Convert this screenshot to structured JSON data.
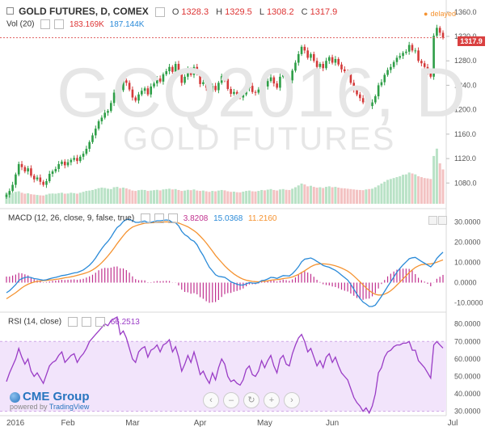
{
  "header": {
    "symbol": "GOLD FUTURES, D, COMEX",
    "o_label": "O",
    "o": "1328.3",
    "h_label": "H",
    "h": "1329.5",
    "l_label": "L",
    "l": "1308.2",
    "c_label": "C",
    "c": "1317.9",
    "vol_label": "Vol (20)",
    "vol1": "183.169K",
    "vol2": "187.144K",
    "delayed": "delayed",
    "last_price": "1317.9"
  },
  "watermark": {
    "line1": "GCQ2016, D",
    "line2": "GOLD FUTURES"
  },
  "macd_header": {
    "label": "MACD (12, 26, close, 9, false, true)",
    "v1": "3.8208",
    "v2": "15.0368",
    "v3": "11.2160"
  },
  "rsi_header": {
    "label": "RSI (14, close)",
    "v1": "66.2513"
  },
  "branding": {
    "brand": "CME Group",
    "powered": "powered by",
    "tv": "TradingView"
  },
  "nav_buttons": [
    "‹",
    "–",
    "↻",
    "+",
    "›"
  ],
  "colors": {
    "up": "#2e9e47",
    "down": "#d33a3a",
    "macd": "#2a8ad8",
    "signal": "#f59331",
    "hist": "#c0308e",
    "rsi": "#9a3cc6",
    "rsi_band": "#f2e4fb",
    "vol_up": "#b9e2c6",
    "vol_down": "#f3c2c2",
    "price_line": "#e06060"
  },
  "chart_data": [
    {
      "type": "candlestick",
      "title": "GOLD FUTURES, D, COMEX",
      "x_ticks": [
        "2016",
        "Feb",
        "Mar",
        "Apr",
        "May",
        "Jun",
        "Jul"
      ],
      "y_ticks": [
        1080,
        1120,
        1160,
        1200,
        1240,
        1280,
        1320,
        1360
      ],
      "ylim": [
        1046,
        1369
      ],
      "last_price": 1317.9,
      "closes": [
        1061,
        1067,
        1077,
        1094,
        1111,
        1106,
        1099,
        1104,
        1092,
        1086,
        1089,
        1082,
        1077,
        1083,
        1095,
        1099,
        1103,
        1111,
        1115,
        1109,
        1114,
        1118,
        1121,
        1116,
        1123,
        1128,
        1136,
        1147,
        1158,
        1169,
        1181,
        1187,
        1195,
        1198,
        1211,
        1228,
        1241,
        1232,
        1248,
        1244,
        1233,
        1220,
        1215,
        1225,
        1231,
        1235,
        1225,
        1238,
        1243,
        1251,
        1246,
        1258,
        1263,
        1270,
        1262,
        1275,
        1263,
        1244,
        1254,
        1266,
        1257,
        1270,
        1259,
        1242,
        1245,
        1236,
        1229,
        1239,
        1232,
        1244,
        1255,
        1250,
        1234,
        1226,
        1229,
        1223,
        1220,
        1225,
        1235,
        1239,
        1229,
        1228,
        1233,
        1245,
        1238,
        1247,
        1253,
        1243,
        1236,
        1254,
        1258,
        1250,
        1248,
        1264,
        1277,
        1291,
        1303,
        1297,
        1285,
        1291,
        1280,
        1270,
        1275,
        1268,
        1280,
        1286,
        1277,
        1283,
        1274,
        1266,
        1263,
        1258,
        1244,
        1233,
        1225,
        1219,
        1212,
        1214,
        1206,
        1212,
        1222,
        1240,
        1245,
        1257,
        1265,
        1270,
        1278,
        1285,
        1288,
        1293,
        1295,
        1306,
        1297,
        1297,
        1280,
        1276,
        1270,
        1262,
        1254,
        1321,
        1334,
        1326,
        1317.9
      ],
      "volume": {
        "label": "Vol (20)",
        "values": [
          60,
          62,
          58,
          65,
          68,
          60,
          55,
          57,
          52,
          50,
          48,
          46,
          45,
          50,
          55,
          56,
          55,
          58,
          60,
          55,
          56,
          60,
          58,
          55,
          60,
          65,
          70,
          72,
          75,
          80,
          85,
          88,
          86,
          82,
          80,
          90,
          92,
          85,
          88,
          84,
          78,
          72,
          70,
          74,
          76,
          75,
          70,
          72,
          74,
          76,
          73,
          78,
          80,
          82,
          78,
          80,
          75,
          70,
          72,
          76,
          74,
          78,
          72,
          70,
          72,
          68,
          65,
          70,
          68,
          72,
          75,
          73,
          68,
          65,
          66,
          63,
          62,
          66,
          70,
          72,
          68,
          67,
          70,
          75,
          73,
          77,
          80,
          75,
          72,
          78,
          80,
          76,
          75,
          82,
          90,
          100,
          110,
          105,
          95,
          98,
          92,
          88,
          90,
          86,
          92,
          95,
          90,
          92,
          88,
          85,
          84,
          82,
          80,
          78,
          76,
          75,
          74,
          78,
          80,
          82,
          90,
          100,
          110,
          120,
          130,
          135,
          140,
          145,
          150,
          158,
          160,
          170,
          165,
          160,
          150,
          145,
          140,
          138,
          135,
          260,
          300,
          220,
          187
        ]
      }
    },
    {
      "type": "line",
      "title": "MACD (12, 26, close, 9, false, true)",
      "y_ticks": [
        -10,
        0,
        10,
        20,
        30
      ],
      "ylim": [
        -13,
        35
      ],
      "series": [
        {
          "name": "MACD",
          "values": [
            -5,
            -4,
            -2.5,
            -1,
            1,
            2,
            2.5,
            2.8,
            2.5,
            2,
            1.8,
            1.5,
            1.2,
            1.4,
            1.9,
            2.3,
            2.6,
            3,
            3.5,
            3.7,
            4,
            4.4,
            4.8,
            5,
            5.6,
            6.3,
            7.4,
            8.6,
            10.2,
            12.2,
            14.6,
            16.8,
            18.8,
            20.4,
            22.5,
            25,
            27.3,
            28.4,
            30.2,
            31.2,
            31.3,
            30.6,
            29.8,
            29.8,
            30.2,
            30.5,
            29.7,
            29.8,
            30.2,
            30.6,
            30.6,
            30.8,
            31,
            30.8,
            29.7,
            29.6,
            28.1,
            25.4,
            23.7,
            22.8,
            21.2,
            20.5,
            18.7,
            15.8,
            13.4,
            10.4,
            7.6,
            5.8,
            3.9,
            3.1,
            2.9,
            2.6,
            1.6,
            0.4,
            -0.2,
            -0.8,
            -1.2,
            -1.2,
            -0.6,
            0,
            -0.2,
            -0.3,
            0,
            1,
            1.2,
            1.8,
            2.6,
            2.5,
            2.1,
            2.8,
            3.5,
            3.4,
            3.3,
            4.4,
            6,
            7.9,
            10.3,
            11.6,
            11.9,
            12.2,
            11.5,
            10.5,
            9.6,
            8.5,
            8,
            7.6,
            6.8,
            6.1,
            5,
            3.7,
            2.5,
            1.3,
            -0.8,
            -3.2,
            -5.7,
            -7.8,
            -9.6,
            -10.6,
            -11.8,
            -11.8,
            -11.1,
            -9,
            -6.8,
            -4.4,
            -1.9,
            0.4,
            2.8,
            5.2,
            7.1,
            8.8,
            10.3,
            11.8,
            12.3,
            12.5,
            11.5,
            10.5,
            9.6,
            8.7,
            7.8,
            9.5,
            12,
            13.6,
            15.04
          ]
        },
        {
          "name": "Signal",
          "values": [
            -8,
            -7,
            -6,
            -5,
            -3.8,
            -2.6,
            -1.6,
            -0.8,
            -0.2,
            0.3,
            0.6,
            0.8,
            1,
            1.1,
            1.3,
            1.4,
            1.6,
            1.8,
            2.1,
            2.4,
            2.6,
            2.9,
            3.2,
            3.6,
            4,
            4.4,
            4.9,
            5.5,
            6.3,
            7.3,
            8.5,
            9.9,
            11.5,
            13.2,
            15.1,
            17.1,
            19.3,
            21.3,
            23.2,
            25,
            26.4,
            27.5,
            28.1,
            28.6,
            29,
            29.4,
            29.5,
            29.6,
            29.7,
            29.8,
            29.9,
            30,
            30.1,
            30,
            29.8,
            29.7,
            29.5,
            28.9,
            28.3,
            27.6,
            26.7,
            25.7,
            24.5,
            23,
            21.4,
            19.6,
            17.6,
            15.6,
            13.5,
            11.7,
            10,
            8.3,
            6.8,
            5.5,
            4.3,
            3.3,
            2.4,
            1.7,
            1.2,
            0.9,
            0.6,
            0.5,
            0.4,
            0.6,
            0.7,
            0.9,
            1.2,
            1.4,
            1.5,
            1.7,
            2,
            2.2,
            2.4,
            2.8,
            3.4,
            4.1,
            5,
            5.9,
            6.9,
            7.9,
            8.6,
            9.1,
            9.3,
            9.3,
            9.2,
            9,
            8.7,
            8.3,
            7.8,
            7.2,
            6.5,
            5.7,
            4.6,
            3.3,
            1.9,
            0.4,
            -1.1,
            -2.6,
            -3.9,
            -5,
            -5.8,
            -6.1,
            -6.1,
            -5.7,
            -5,
            -4,
            -2.7,
            -1.2,
            0.3,
            1.9,
            3.4,
            5,
            6.3,
            7.5,
            8.3,
            8.9,
            9.1,
            9.2,
            9.3,
            9.6,
            10.1,
            10.7,
            11.22
          ]
        }
      ],
      "histogram": {
        "name": "Histogram",
        "values": [
          3,
          3,
          3.5,
          4,
          4.8,
          4.6,
          4.1,
          3.6,
          2.7,
          1.7,
          1.2,
          0.7,
          0.2,
          0.3,
          0.6,
          0.9,
          1,
          1.2,
          1.4,
          1.3,
          1.4,
          1.5,
          1.6,
          1.4,
          1.6,
          1.9,
          2.5,
          3.1,
          3.9,
          4.9,
          6.1,
          6.9,
          7.3,
          7.2,
          7.4,
          7.9,
          8,
          7.1,
          7,
          6.2,
          4.9,
          3.1,
          1.7,
          1.2,
          1.2,
          1.1,
          0.2,
          0.2,
          0.5,
          0.8,
          0.7,
          0.8,
          0.9,
          0.8,
          -0.1,
          -0.1,
          -1.4,
          -3.5,
          -4.6,
          -4.8,
          -5.5,
          -5.2,
          -5.8,
          -7.2,
          -8,
          -9.2,
          -10,
          -9.8,
          -9.6,
          -8.6,
          -7.1,
          -5.7,
          -5.2,
          -5.1,
          -4.5,
          -4.1,
          -3.6,
          -2.9,
          -1.8,
          -0.9,
          -0.8,
          -0.8,
          -0.4,
          0.4,
          0.5,
          0.9,
          1.4,
          1.1,
          0.6,
          1.1,
          1.5,
          1.2,
          0.9,
          1.6,
          2.6,
          3.8,
          5.3,
          5.7,
          5,
          4.3,
          2.9,
          1.4,
          0.3,
          -0.8,
          -1.2,
          -1.4,
          -1.9,
          -2.2,
          -2.8,
          -3.5,
          -4,
          -4.4,
          -5.4,
          -6.5,
          -7.6,
          -8.2,
          -8.5,
          -8,
          -7.9,
          -6.8,
          -5.3,
          -2.9,
          -0.7,
          1.3,
          3.1,
          4.4,
          5.5,
          6.4,
          6.8,
          6.9,
          6.9,
          6.8,
          6,
          4.2,
          2.4,
          1.2,
          0.5,
          -0.6,
          -1.8,
          -0.1,
          1.9,
          2.9,
          3.82
        ]
      }
    },
    {
      "type": "line",
      "title": "RSI (14, close)",
      "y_ticks": [
        30,
        40,
        50,
        60,
        70,
        80
      ],
      "ylim": [
        28,
        84
      ],
      "band": [
        30,
        70
      ],
      "series": [
        {
          "name": "RSI",
          "values": [
            47,
            52,
            56,
            60,
            66,
            61,
            57,
            60,
            53,
            50,
            52,
            49,
            46,
            51,
            56,
            58,
            59,
            62,
            64,
            58,
            60,
            62,
            63,
            58,
            61,
            63,
            66,
            70,
            72,
            74,
            76,
            78,
            80,
            79,
            82,
            83,
            84,
            74,
            76,
            72,
            66,
            60,
            58,
            64,
            66,
            67,
            61,
            65,
            66,
            68,
            64,
            68,
            69,
            71,
            64,
            67,
            61,
            53,
            57,
            62,
            58,
            64,
            58,
            51,
            53,
            49,
            46,
            52,
            48,
            55,
            60,
            57,
            50,
            47,
            48,
            46,
            45,
            48,
            54,
            56,
            51,
            50,
            53,
            59,
            55,
            59,
            62,
            56,
            52,
            60,
            62,
            57,
            56,
            63,
            68,
            72,
            74,
            70,
            64,
            66,
            61,
            56,
            59,
            55,
            61,
            63,
            58,
            61,
            56,
            52,
            50,
            48,
            43,
            38,
            35,
            33,
            30,
            32,
            29,
            33,
            40,
            52,
            55,
            61,
            64,
            65,
            67,
            68,
            68,
            69,
            69,
            70,
            65,
            65,
            59,
            57,
            55,
            52,
            49,
            68,
            70,
            68,
            66.25
          ]
        }
      ]
    }
  ]
}
